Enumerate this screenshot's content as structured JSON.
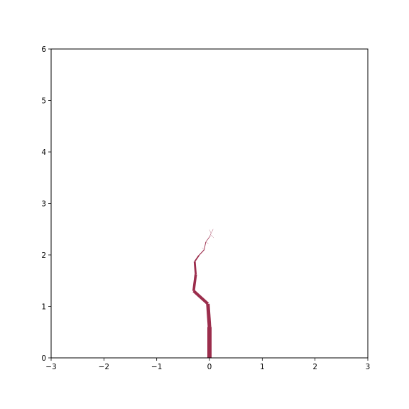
{
  "chart_data": {
    "type": "line",
    "title": "",
    "xlabel": "",
    "ylabel": "",
    "xlim": [
      -3,
      3
    ],
    "ylim": [
      0,
      6
    ],
    "grid": false,
    "legend": "none",
    "x_ticks": [
      {
        "value": -3,
        "label": "−3"
      },
      {
        "value": -2,
        "label": "−2"
      },
      {
        "value": -1,
        "label": "−1"
      },
      {
        "value": 0,
        "label": "0"
      },
      {
        "value": 1,
        "label": "1"
      },
      {
        "value": 2,
        "label": "2"
      },
      {
        "value": 3,
        "label": "3"
      }
    ],
    "y_ticks": [
      {
        "value": 0,
        "label": "0"
      },
      {
        "value": 1,
        "label": "1"
      },
      {
        "value": 2,
        "label": "2"
      },
      {
        "value": 3,
        "label": "3"
      },
      {
        "value": 4,
        "label": "4"
      },
      {
        "value": 5,
        "label": "5"
      },
      {
        "value": 6,
        "label": "6"
      }
    ],
    "color": "#9b2d4c",
    "segments": [
      {
        "x": [
          0.0,
          0.0
        ],
        "y": [
          0.0,
          0.6
        ],
        "width": 6.0
      },
      {
        "x": [
          0.0,
          -0.03
        ],
        "y": [
          0.6,
          1.05
        ],
        "width": 5.0
      },
      {
        "x": [
          -0.03,
          -0.3
        ],
        "y": [
          1.05,
          1.3
        ],
        "width": 4.2
      },
      {
        "x": [
          -0.3,
          -0.26
        ],
        "y": [
          1.3,
          1.62
        ],
        "width": 3.6
      },
      {
        "x": [
          -0.26,
          -0.28
        ],
        "y": [
          1.62,
          1.87
        ],
        "width": 2.8
      },
      {
        "x": [
          -0.28,
          -0.2
        ],
        "y": [
          1.87,
          1.99
        ],
        "width": 1.8
      },
      {
        "x": [
          -0.2,
          -0.1
        ],
        "y": [
          1.99,
          2.1
        ],
        "width": 1.2
      },
      {
        "x": [
          -0.1,
          -0.07
        ],
        "y": [
          2.1,
          2.25
        ],
        "width": 0.9
      },
      {
        "x": [
          -0.07,
          0.0
        ],
        "y": [
          2.25,
          2.35
        ],
        "width": 0.7
      },
      {
        "x": [
          0.0,
          0.03
        ],
        "y": [
          2.35,
          2.42
        ],
        "width": 0.5
      },
      {
        "x": [
          0.03,
          0.07
        ],
        "y": [
          2.42,
          2.5
        ],
        "width": 0.4
      },
      {
        "x": [
          0.03,
          0.0
        ],
        "y": [
          2.42,
          2.49
        ],
        "width": 0.3
      },
      {
        "x": [
          0.0,
          0.04
        ],
        "y": [
          2.35,
          2.38
        ],
        "width": 0.3
      },
      {
        "x": [
          0.04,
          0.08
        ],
        "y": [
          2.38,
          2.33
        ],
        "width": 0.3
      },
      {
        "x": [
          -0.07,
          -0.02
        ],
        "y": [
          2.25,
          2.22
        ],
        "width": 0.3
      },
      {
        "x": [
          -0.1,
          -0.14
        ],
        "y": [
          2.1,
          2.14
        ],
        "width": 0.3
      }
    ]
  }
}
